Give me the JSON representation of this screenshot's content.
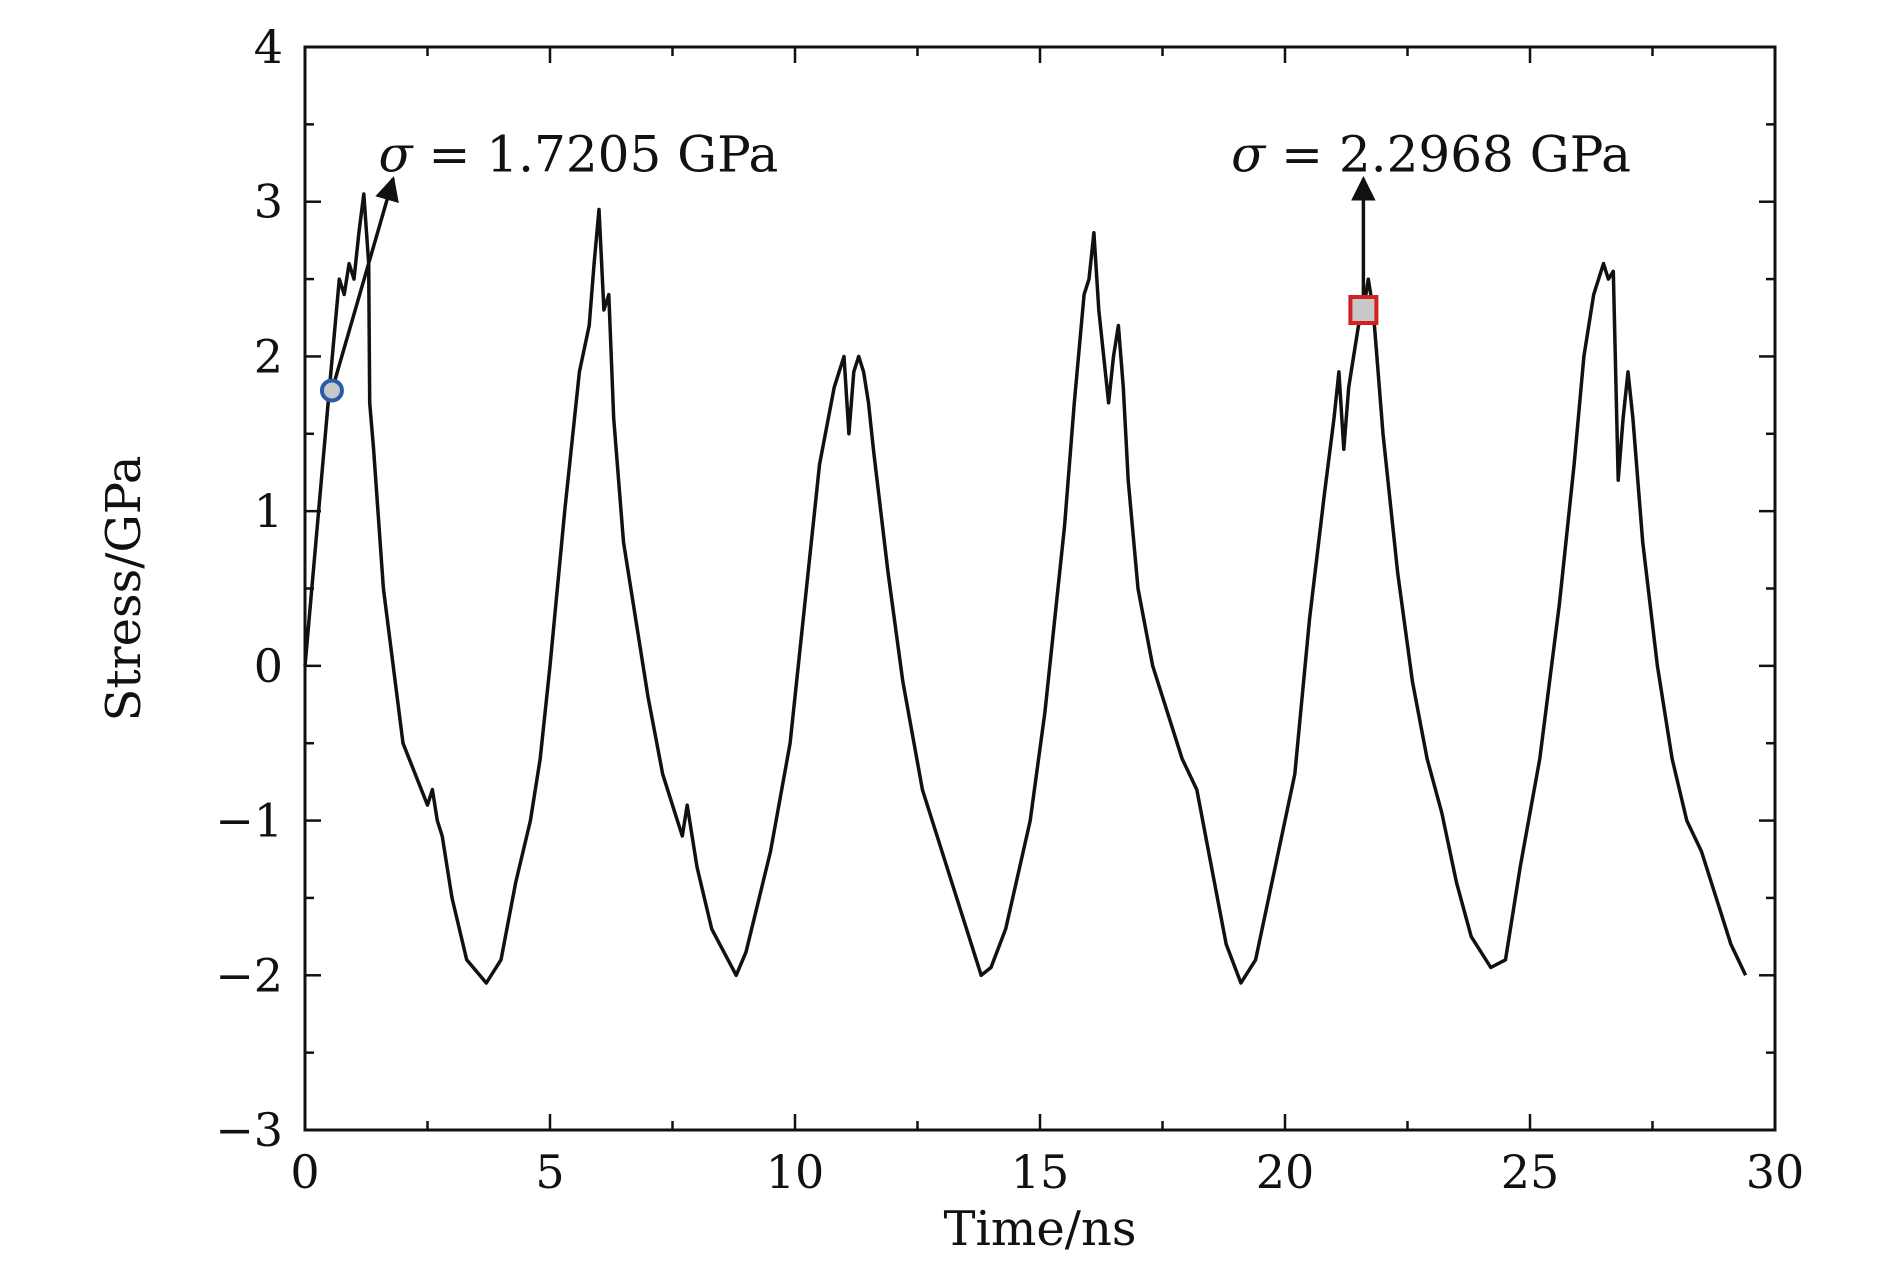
{
  "chart_data": {
    "type": "line",
    "title": "",
    "xlabel": "Time/ns",
    "ylabel": "Stress/GPa",
    "xlim": [
      0,
      30
    ],
    "ylim": [
      -3,
      4
    ],
    "x_ticks": [
      0,
      5,
      10,
      15,
      20,
      25,
      30
    ],
    "x_tick_labels": [
      "0",
      "5",
      "10",
      "15",
      "20",
      "25",
      "30"
    ],
    "y_ticks": [
      -3,
      -2,
      -1,
      0,
      1,
      2,
      3,
      4
    ],
    "y_tick_labels": [
      "−3",
      "−2",
      "−1",
      "0",
      "1",
      "2",
      "3",
      "4"
    ],
    "grid": false,
    "legend": "none",
    "series": [
      {
        "color": "#111111",
        "x": [
          0,
          0.5,
          0.7,
          0.8,
          0.9,
          1.0,
          1.1,
          1.2,
          1.3,
          1.32,
          1.4,
          1.6,
          2.0,
          2.5,
          2.6,
          2.7,
          2.8,
          3.0,
          3.3,
          3.7,
          4.0,
          4.3,
          4.6,
          4.8,
          5.0,
          5.3,
          5.6,
          5.8,
          5.9,
          6.0,
          6.1,
          6.2,
          6.3,
          6.5,
          6.8,
          7.0,
          7.3,
          7.6,
          7.7,
          7.8,
          7.9,
          8.0,
          8.3,
          8.8,
          9.0,
          9.5,
          9.9,
          10.2,
          10.5,
          10.8,
          11.0,
          11.1,
          11.2,
          11.3,
          11.4,
          11.5,
          11.6,
          11.9,
          12.2,
          12.6,
          13.0,
          13.5,
          13.8,
          14.0,
          14.3,
          14.8,
          15.1,
          15.5,
          15.7,
          15.9,
          16.0,
          16.1,
          16.2,
          16.3,
          16.4,
          16.5,
          16.6,
          16.7,
          16.8,
          17.0,
          17.3,
          17.6,
          17.9,
          18.2,
          18.5,
          18.8,
          19.1,
          19.4,
          19.8,
          20.2,
          20.5,
          20.8,
          21.0,
          21.1,
          21.2,
          21.3,
          21.4,
          21.5,
          21.6,
          21.7,
          21.8,
          22.0,
          22.3,
          22.6,
          22.9,
          23.2,
          23.5,
          23.8,
          24.2,
          24.5,
          24.8,
          25.2,
          25.6,
          25.9,
          26.1,
          26.3,
          26.5,
          26.6,
          26.7,
          26.8,
          26.9,
          27.0,
          27.1,
          27.3,
          27.6,
          27.9,
          28.2,
          28.5,
          28.8,
          29.1,
          29.4
        ],
        "y": [
          0.0,
          1.8,
          2.5,
          2.4,
          2.6,
          2.5,
          2.8,
          3.05,
          2.6,
          1.7,
          1.4,
          0.5,
          -0.5,
          -0.9,
          -0.8,
          -1.0,
          -1.1,
          -1.5,
          -1.9,
          -2.05,
          -1.9,
          -1.4,
          -1.0,
          -0.6,
          0.0,
          1.0,
          1.9,
          2.2,
          2.6,
          2.95,
          2.3,
          2.4,
          1.6,
          0.8,
          0.2,
          -0.2,
          -0.7,
          -1.0,
          -1.1,
          -0.9,
          -1.1,
          -1.3,
          -1.7,
          -2.0,
          -1.85,
          -1.2,
          -0.5,
          0.4,
          1.3,
          1.8,
          2.0,
          1.5,
          1.9,
          2.0,
          1.9,
          1.7,
          1.4,
          0.6,
          -0.1,
          -0.8,
          -1.2,
          -1.7,
          -2.0,
          -1.95,
          -1.7,
          -1.0,
          -0.3,
          0.9,
          1.7,
          2.4,
          2.5,
          2.8,
          2.3,
          2.0,
          1.7,
          2.0,
          2.2,
          1.8,
          1.2,
          0.5,
          0.0,
          -0.3,
          -0.6,
          -0.8,
          -1.3,
          -1.8,
          -2.05,
          -1.9,
          -1.3,
          -0.7,
          0.3,
          1.1,
          1.6,
          1.9,
          1.4,
          1.8,
          2.0,
          2.2,
          2.3,
          2.5,
          2.3,
          1.5,
          0.6,
          -0.1,
          -0.6,
          -0.95,
          -1.4,
          -1.75,
          -1.95,
          -1.9,
          -1.3,
          -0.6,
          0.4,
          1.3,
          2.0,
          2.4,
          2.6,
          2.5,
          2.55,
          1.2,
          1.6,
          1.9,
          1.6,
          0.8,
          0.0,
          -0.6,
          -1.0,
          -1.2,
          -1.5,
          -1.8,
          -2.0
        ]
      }
    ],
    "annotations": [
      {
        "sigma": "σ",
        "text": " = 1.7205 GPa",
        "marker": "circle",
        "marker_x": 0.55,
        "marker_y": 1.78,
        "arrow_to_x": 1.8,
        "arrow_to_y": 3.15,
        "text_x": 1.5,
        "text_y": 3.3,
        "edge_color": "#2a5aa8",
        "fill_color": "#c8c8c8"
      },
      {
        "sigma": "σ",
        "text": " = 2.2968 GPa",
        "marker": "square",
        "marker_x": 21.6,
        "marker_y": 2.3,
        "arrow_to_x": 21.6,
        "arrow_to_y": 3.15,
        "text_x": 18.9,
        "text_y": 3.3,
        "edge_color": "#d42020",
        "fill_color": "#c8c8c8"
      }
    ]
  }
}
